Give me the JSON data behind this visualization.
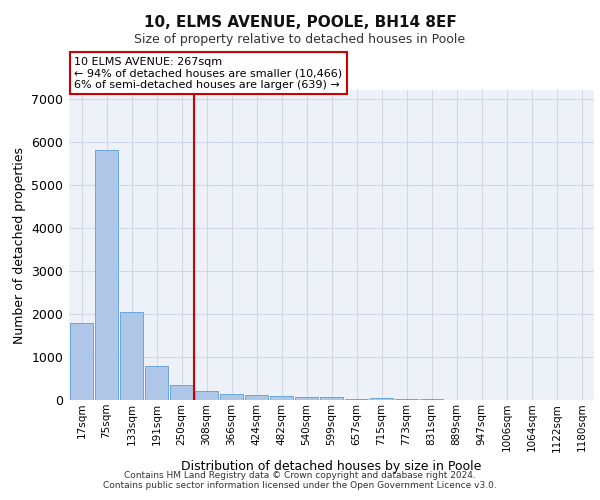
{
  "title": "10, ELMS AVENUE, POOLE, BH14 8EF",
  "subtitle": "Size of property relative to detached houses in Poole",
  "xlabel": "Distribution of detached houses by size in Poole",
  "ylabel": "Number of detached properties",
  "footer_line1": "Contains HM Land Registry data © Crown copyright and database right 2024.",
  "footer_line2": "Contains public sector information licensed under the Open Government Licence v3.0.",
  "bar_labels": [
    "17sqm",
    "75sqm",
    "133sqm",
    "191sqm",
    "250sqm",
    "308sqm",
    "366sqm",
    "424sqm",
    "482sqm",
    "540sqm",
    "599sqm",
    "657sqm",
    "715sqm",
    "773sqm",
    "831sqm",
    "889sqm",
    "947sqm",
    "1006sqm",
    "1064sqm",
    "1122sqm",
    "1180sqm"
  ],
  "bar_values": [
    1800,
    5800,
    2050,
    800,
    340,
    200,
    130,
    110,
    100,
    60,
    65,
    30,
    40,
    20,
    15,
    10,
    8,
    5,
    5,
    3,
    3
  ],
  "bar_color": "#aec6e8",
  "bar_edge_color": "#5a9fd4",
  "grid_color": "#d0d8e8",
  "background_color": "#eef2f8",
  "vline_x": 4.5,
  "vline_color": "#cc0000",
  "annotation_text": "10 ELMS AVENUE: 267sqm\n← 94% of detached houses are smaller (10,466)\n6% of semi-detached houses are larger (639) →",
  "annotation_box_color": "#cc0000",
  "ylim": [
    0,
    7200
  ],
  "yticks": [
    0,
    1000,
    2000,
    3000,
    4000,
    5000,
    6000,
    7000
  ]
}
